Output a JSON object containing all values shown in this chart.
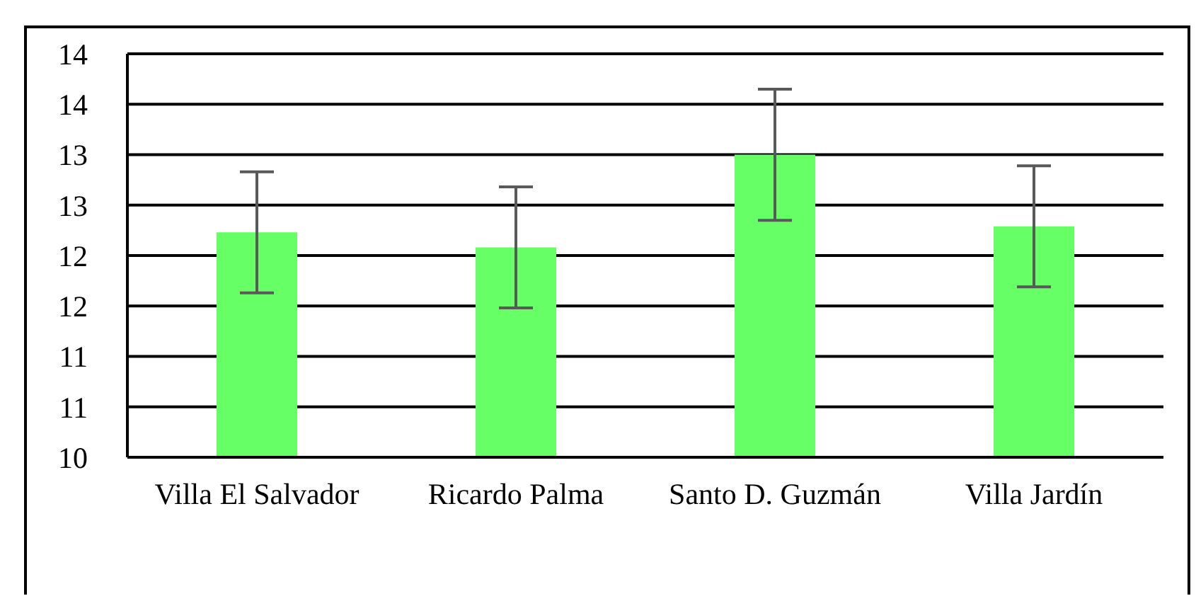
{
  "chart_data": {
    "type": "bar",
    "categories": [
      "Villa El Salvador",
      "Ricardo Palma",
      "Santo D. Guzmán",
      "Villa Jardín"
    ],
    "values": [
      12.23,
      12.08,
      13.0,
      12.29
    ],
    "errors": [
      0.6,
      0.6,
      0.65,
      0.6
    ],
    "color": "#66ff66",
    "ylim": [
      10,
      14
    ],
    "yticks": [
      10,
      {
        "value": 10.5,
        "label": "11"
      },
      11,
      {
        "value": 11.5,
        "label": "12"
      },
      12,
      {
        "value": 12.5,
        "label": "13"
      },
      13,
      {
        "value": 13.5,
        "label": "14"
      },
      14
    ],
    "grid": "y",
    "legend": false
  }
}
